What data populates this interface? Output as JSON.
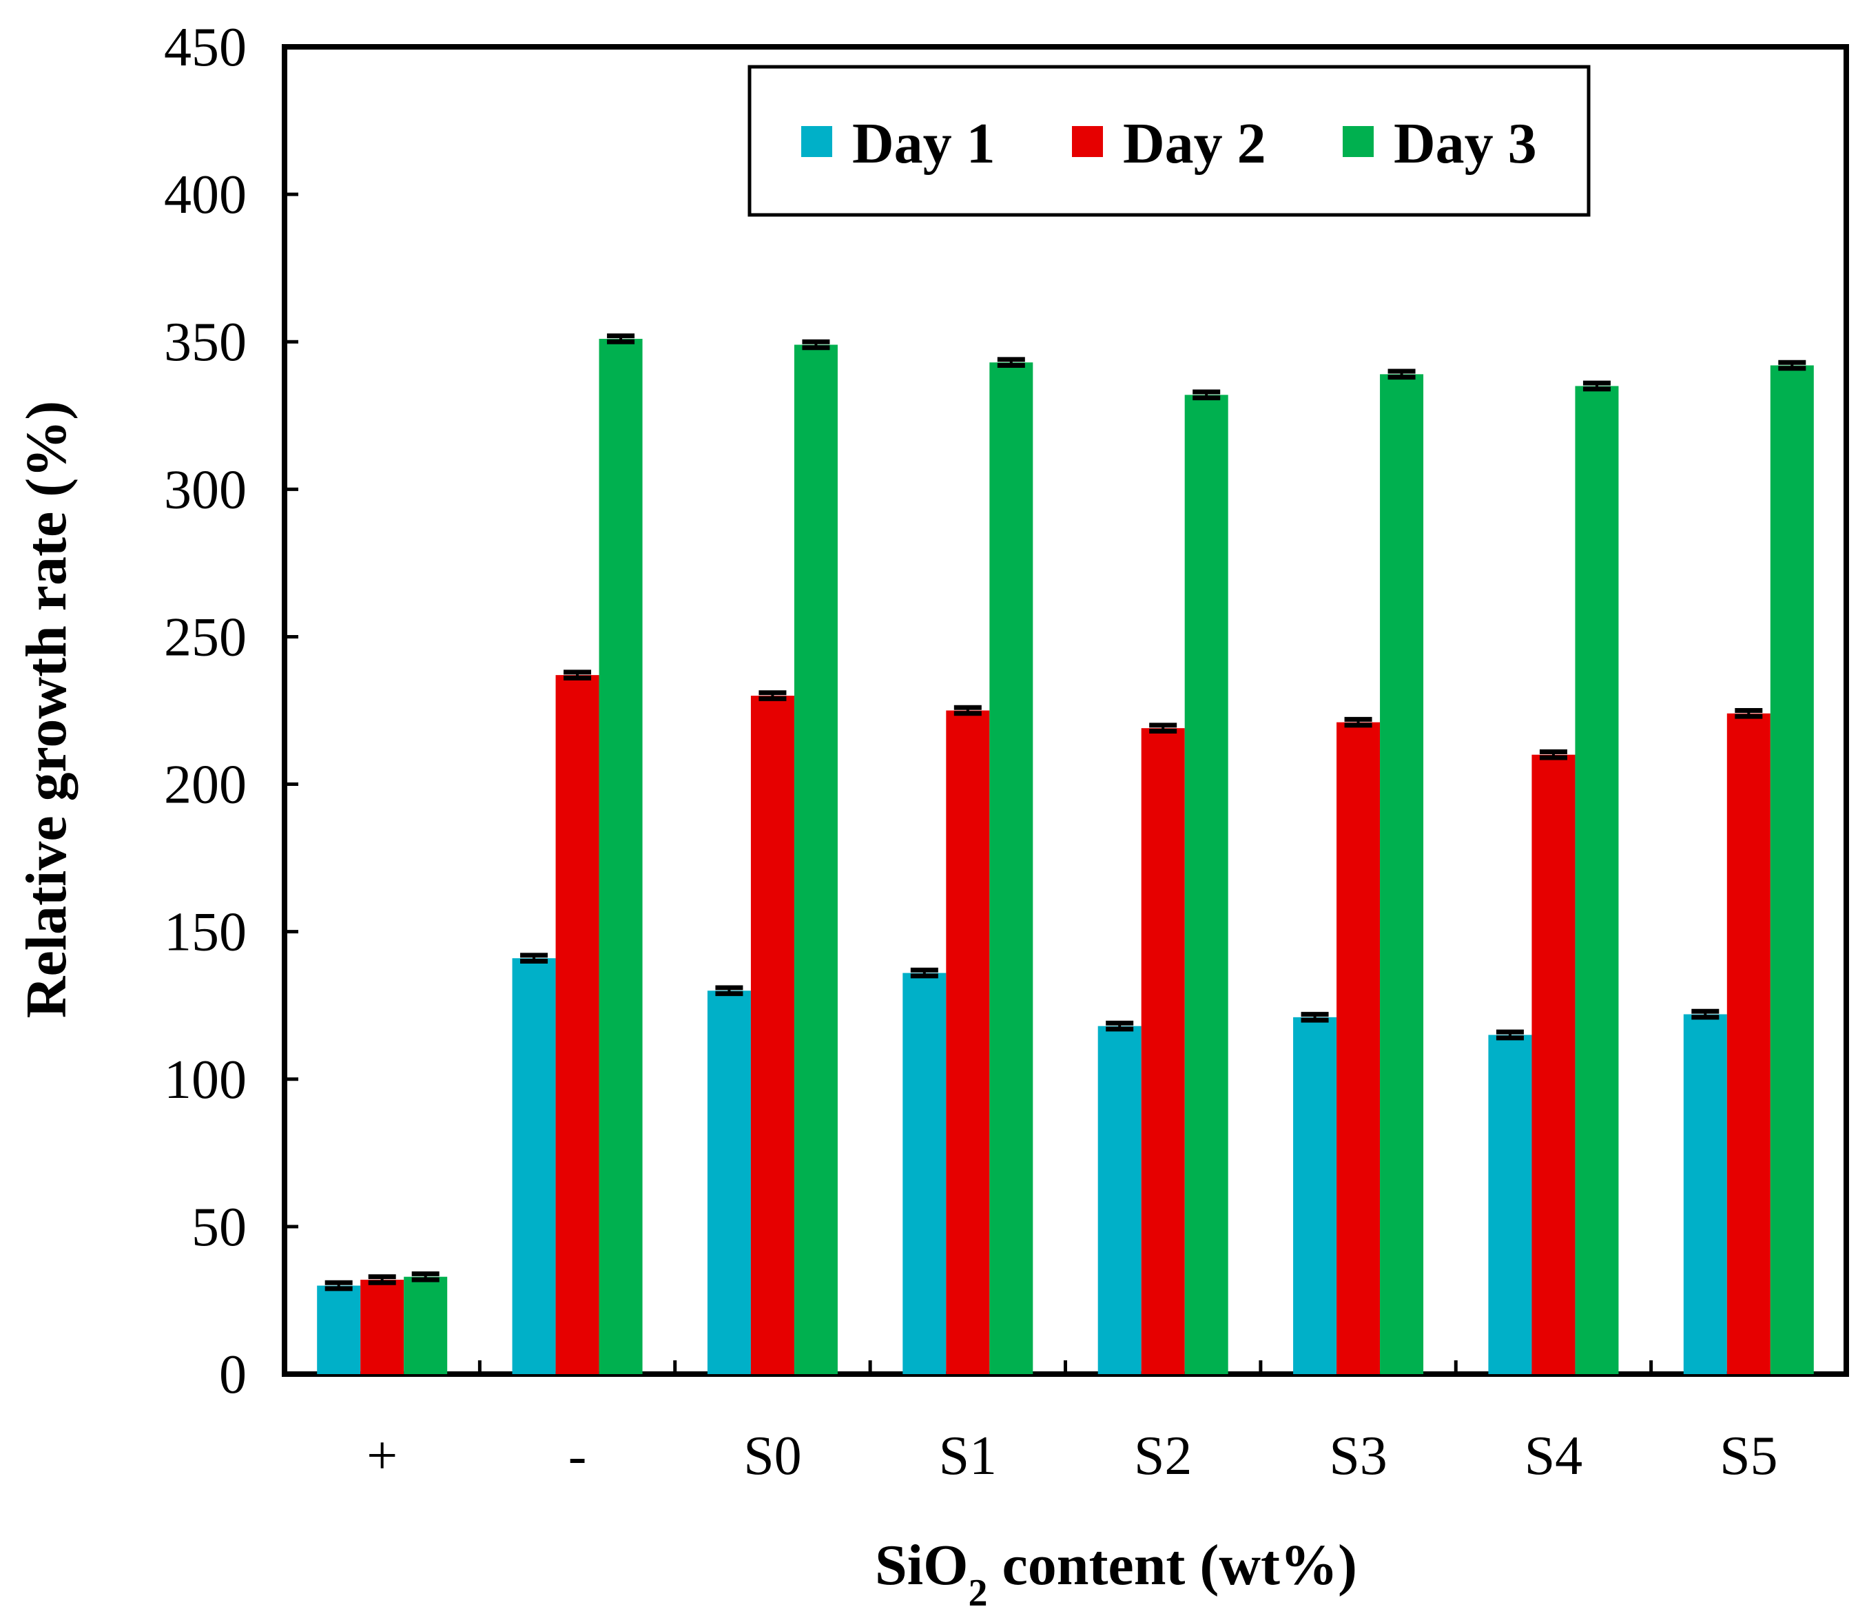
{
  "chart_data": {
    "type": "bar",
    "title": "",
    "xlabel_main": "SiO",
    "xlabel_sub": "2",
    "xlabel_rest": " content (wt%)",
    "ylabel": "Relative growth rate  (%)",
    "ylim": [
      0,
      450
    ],
    "yticks": [
      0,
      50,
      100,
      150,
      200,
      250,
      300,
      350,
      400,
      450
    ],
    "grid": false,
    "legend_position": "top-center",
    "categories": [
      "+",
      "-",
      "S0",
      "S1",
      "S2",
      "S3",
      "S4",
      "S5"
    ],
    "series": [
      {
        "name": "Day 1",
        "color": "#00b0c8",
        "values": [
          30,
          141,
          130,
          136,
          118,
          121,
          115,
          122
        ],
        "errors": [
          1,
          1,
          1,
          1,
          1,
          1,
          1,
          1
        ]
      },
      {
        "name": "Day 2",
        "color": "#e60000",
        "values": [
          32,
          237,
          230,
          225,
          219,
          221,
          210,
          224
        ],
        "errors": [
          1,
          1,
          1,
          1,
          1,
          1,
          1,
          1
        ]
      },
      {
        "name": "Day 3",
        "color": "#00b04f",
        "values": [
          33,
          351,
          349,
          343,
          332,
          339,
          335,
          342
        ],
        "errors": [
          1,
          1,
          1,
          1,
          1,
          1,
          1,
          1
        ]
      }
    ]
  }
}
